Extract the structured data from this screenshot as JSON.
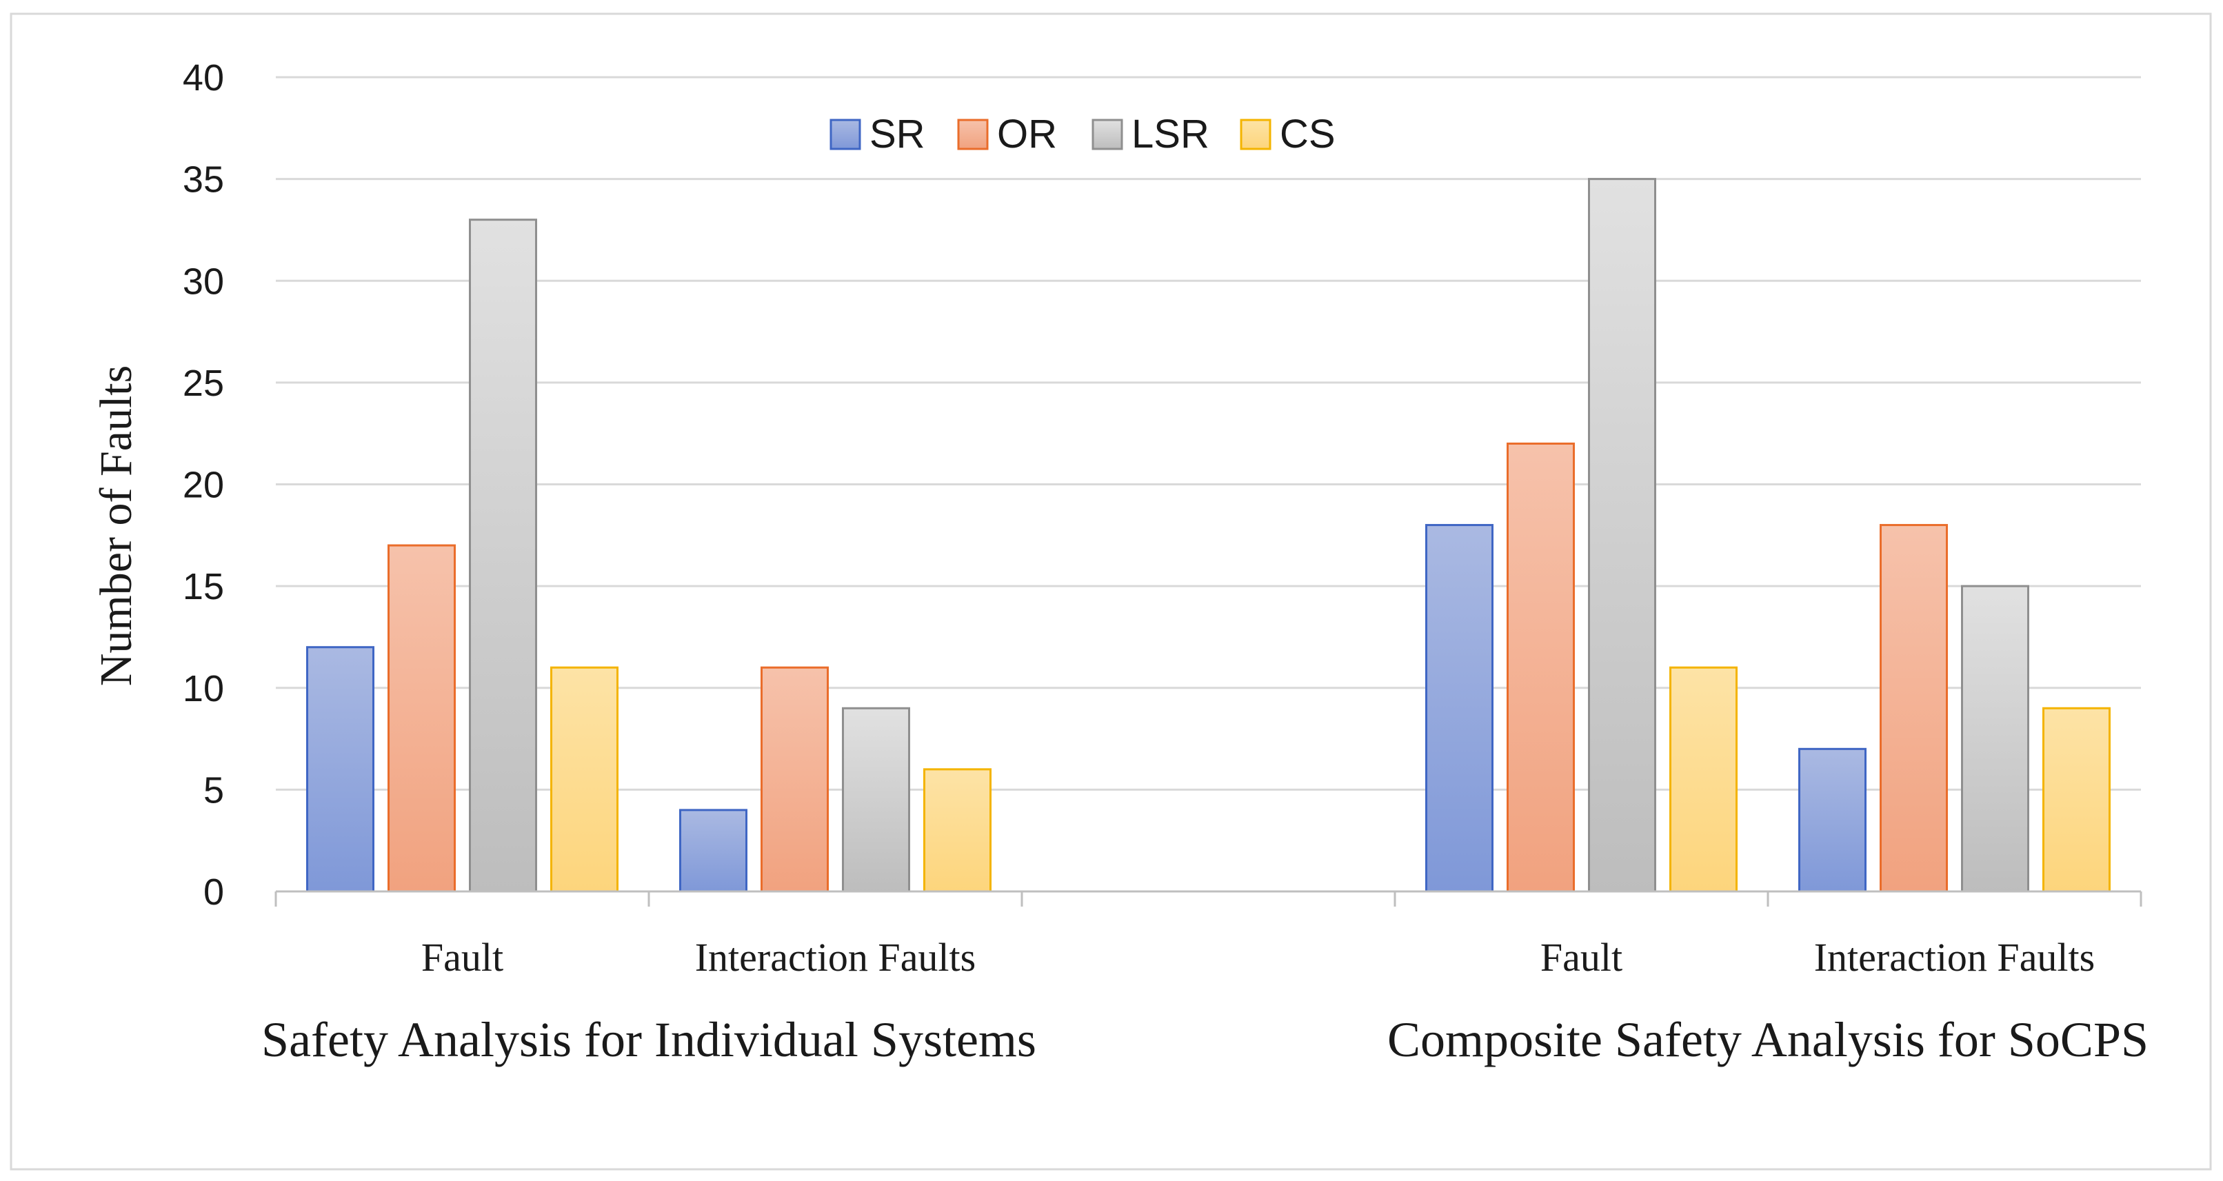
{
  "chart_data": {
    "type": "bar",
    "title": "",
    "ylabel": "Number of Faults",
    "xlabel": "",
    "ylim": [
      0,
      40
    ],
    "yticks": [
      0,
      5,
      10,
      15,
      20,
      25,
      30,
      35,
      40
    ],
    "grid": true,
    "legend_position": "top-center",
    "groups": [
      {
        "label": "Safety Analysis for Individual Systems",
        "categories": [
          "Fault",
          "Interaction Faults"
        ]
      },
      {
        "label": "Composite Safety Analysis for SoCPS",
        "categories": [
          "Fault",
          "Interaction Faults"
        ]
      }
    ],
    "categories": [
      "Fault",
      "Interaction Faults",
      "",
      "Fault",
      "Interaction Faults"
    ],
    "series": [
      {
        "name": "SR",
        "values": [
          12,
          4,
          null,
          18,
          7
        ]
      },
      {
        "name": "OR",
        "values": [
          17,
          11,
          null,
          22,
          18
        ]
      },
      {
        "name": "LSR",
        "values": [
          33,
          9,
          null,
          35,
          15
        ]
      },
      {
        "name": "CS",
        "values": [
          11,
          6,
          null,
          11,
          9
        ]
      }
    ],
    "colors": {
      "SR": {
        "top": "#aab9e2",
        "bottom": "#7f98d8",
        "stroke": "#3f66c4"
      },
      "OR": {
        "top": "#f6c2ab",
        "bottom": "#f1a27f",
        "stroke": "#ea6d2b"
      },
      "LSR": {
        "top": "#e1e1e1",
        "bottom": "#bdbdbd",
        "stroke": "#8f8f8f"
      },
      "CS": {
        "top": "#fde3a6",
        "bottom": "#fdd57c",
        "stroke": "#f4b400"
      }
    }
  }
}
